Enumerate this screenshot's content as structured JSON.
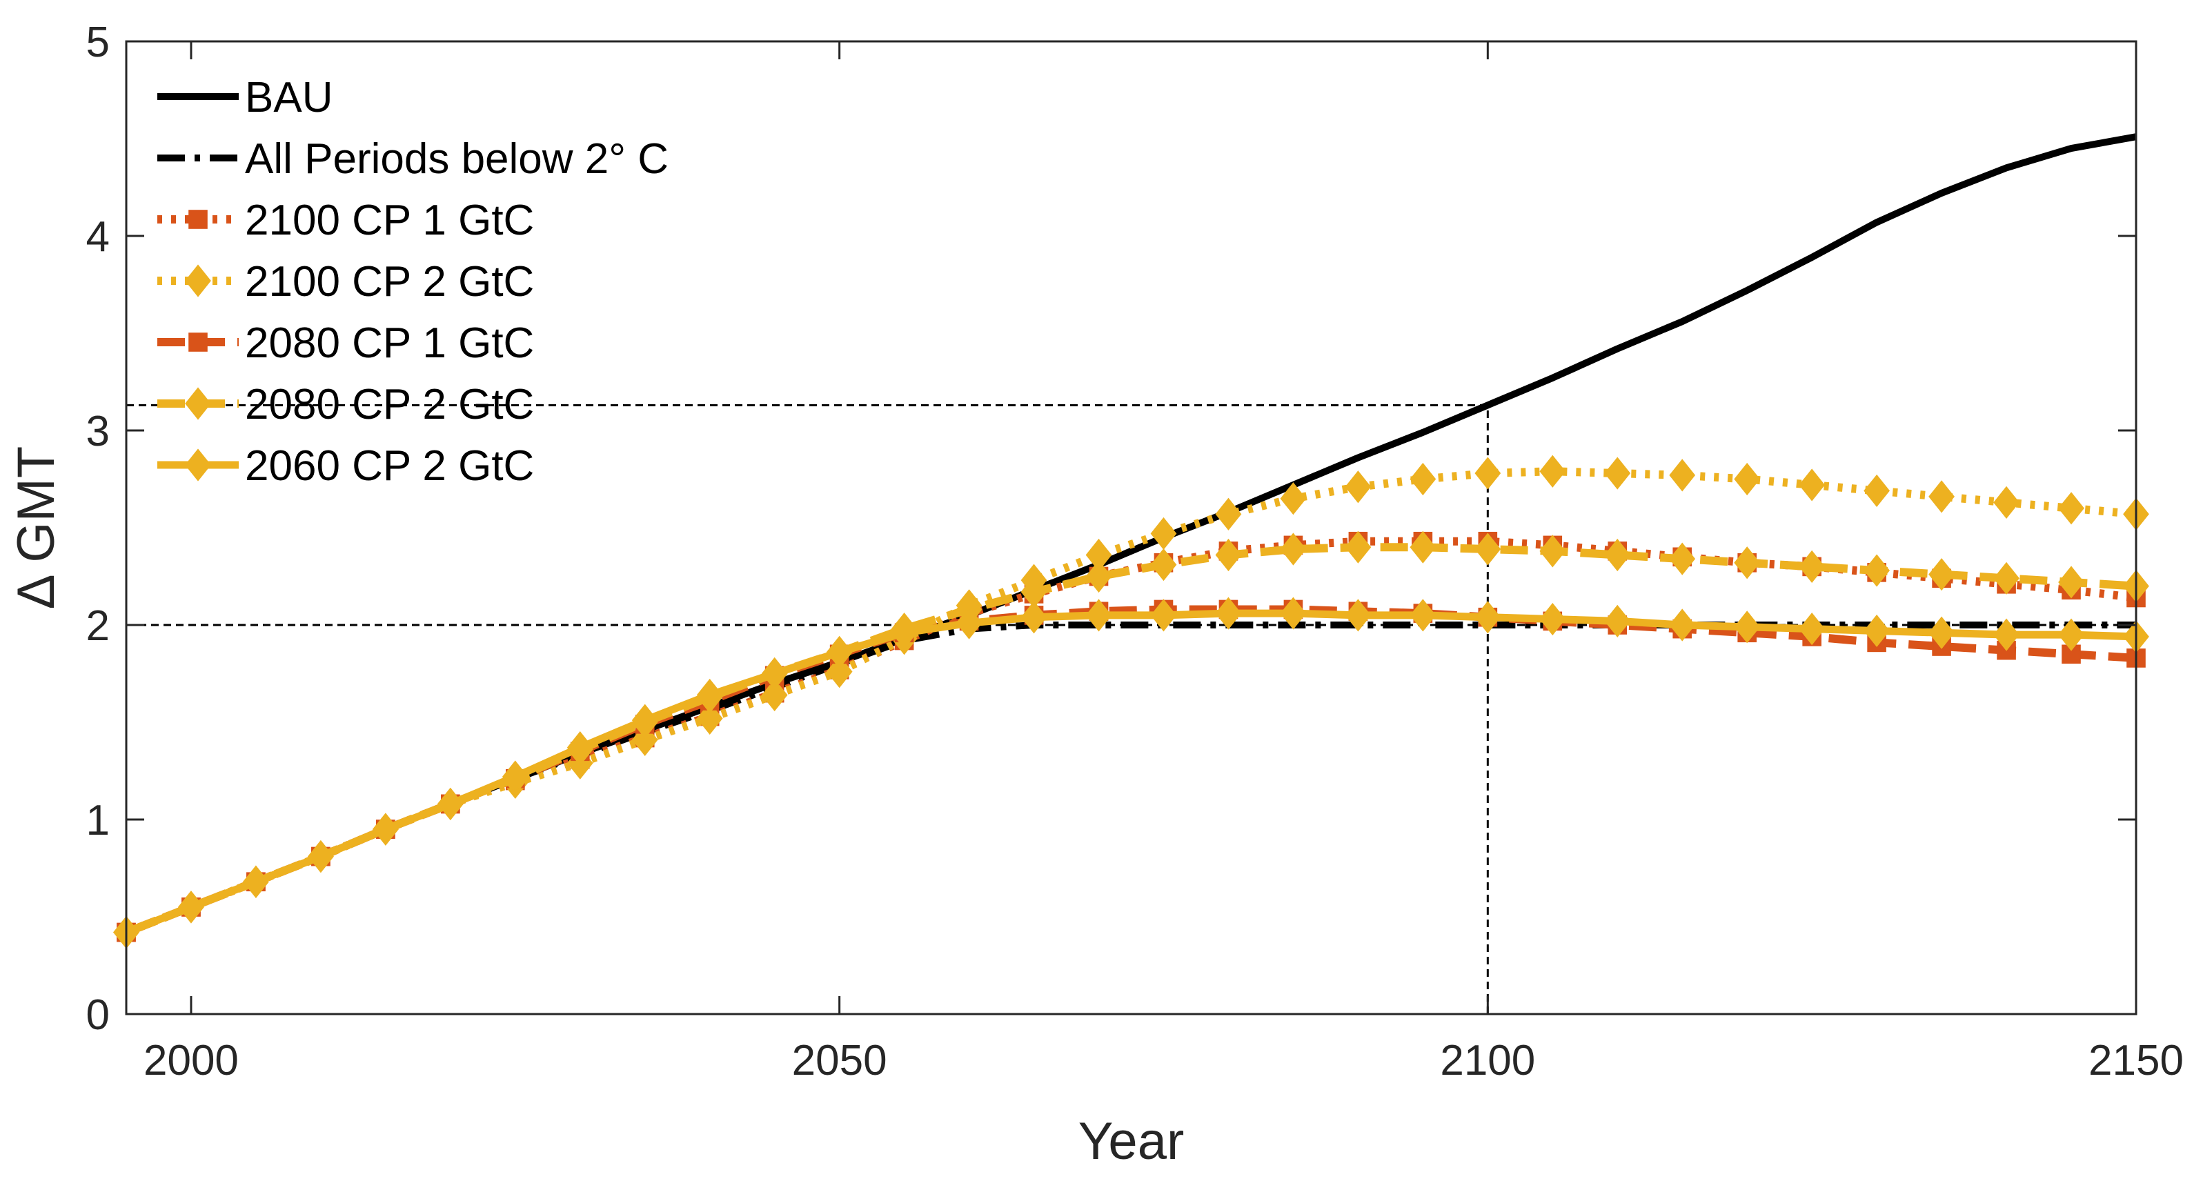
{
  "chart_data": {
    "type": "line",
    "title": "",
    "xlabel": "Year",
    "ylabel": "Δ GMT",
    "xlim": [
      1995,
      2150
    ],
    "ylim": [
      0,
      5
    ],
    "xticks": [
      2000,
      2050,
      2100,
      2150
    ],
    "yticks": [
      0,
      1,
      2,
      3,
      4,
      5
    ],
    "xtick_labels": [
      "2000",
      "2050",
      "2100",
      "2150"
    ],
    "ytick_labels": [
      "0",
      "1",
      "2",
      "3",
      "4",
      "5"
    ],
    "grid": false,
    "legend_position": "top-left",
    "reference_lines": [
      {
        "orientation": "horizontal",
        "y": 2.0,
        "x_range": [
          1995,
          2150
        ]
      },
      {
        "orientation": "horizontal",
        "y": 3.13,
        "x_range": [
          1995,
          2100
        ]
      },
      {
        "orientation": "vertical",
        "x": 2100,
        "y_range": [
          0,
          3.13
        ]
      }
    ],
    "x": [
      1995,
      2000,
      2005,
      2010,
      2015,
      2020,
      2025,
      2030,
      2035,
      2040,
      2045,
      2050,
      2055,
      2060,
      2065,
      2070,
      2075,
      2080,
      2085,
      2090,
      2095,
      2100,
      2105,
      2110,
      2115,
      2120,
      2125,
      2130,
      2135,
      2140,
      2145,
      2150
    ],
    "series": [
      {
        "name": "BAU",
        "color": "#000000",
        "line_style": "solid",
        "marker": "none",
        "values": [
          0.42,
          0.55,
          0.68,
          0.81,
          0.95,
          1.08,
          1.21,
          1.34,
          1.46,
          1.58,
          1.7,
          1.81,
          1.93,
          2.05,
          2.18,
          2.31,
          2.45,
          2.58,
          2.72,
          2.86,
          2.99,
          3.13,
          3.27,
          3.42,
          3.56,
          3.72,
          3.89,
          4.07,
          4.22,
          4.35,
          4.45,
          4.51
        ]
      },
      {
        "name": "All Periods below 2° C",
        "color": "#000000",
        "line_style": "dashdot",
        "marker": "none",
        "values": [
          0.42,
          0.55,
          0.68,
          0.81,
          0.95,
          1.08,
          1.21,
          1.33,
          1.45,
          1.56,
          1.68,
          1.8,
          1.92,
          1.98,
          2.0,
          2.0,
          2.0,
          2.0,
          2.0,
          2.0,
          2.0,
          2.0,
          2.0,
          2.0,
          2.0,
          2.0,
          2.0,
          2.0,
          2.0,
          2.0,
          2.0,
          2.0
        ]
      },
      {
        "name": "2100 CP 1 GtC",
        "color": "#D95319",
        "line_style": "dotted",
        "marker": "square",
        "values": [
          0.42,
          0.55,
          0.68,
          0.81,
          0.95,
          1.08,
          1.2,
          1.31,
          1.42,
          1.53,
          1.65,
          1.77,
          1.92,
          2.06,
          2.16,
          2.25,
          2.32,
          2.38,
          2.41,
          2.43,
          2.43,
          2.43,
          2.41,
          2.38,
          2.35,
          2.32,
          2.3,
          2.27,
          2.24,
          2.21,
          2.18,
          2.14
        ]
      },
      {
        "name": "2100 CP 2 GtC",
        "color": "#EDB120",
        "line_style": "dotted",
        "marker": "diamond",
        "values": [
          0.42,
          0.55,
          0.68,
          0.81,
          0.95,
          1.08,
          1.19,
          1.29,
          1.41,
          1.52,
          1.64,
          1.76,
          1.93,
          2.1,
          2.23,
          2.36,
          2.47,
          2.57,
          2.65,
          2.71,
          2.75,
          2.78,
          2.79,
          2.78,
          2.77,
          2.75,
          2.72,
          2.69,
          2.66,
          2.63,
          2.6,
          2.57
        ]
      },
      {
        "name": "2080 CP 1 GtC",
        "color": "#D95319",
        "line_style": "dashed",
        "marker": "square",
        "values": [
          0.42,
          0.55,
          0.68,
          0.81,
          0.95,
          1.08,
          1.21,
          1.35,
          1.49,
          1.61,
          1.74,
          1.85,
          1.96,
          2.02,
          2.05,
          2.07,
          2.08,
          2.08,
          2.08,
          2.07,
          2.06,
          2.04,
          2.02,
          2.0,
          1.98,
          1.96,
          1.94,
          1.91,
          1.89,
          1.87,
          1.85,
          1.83
        ]
      },
      {
        "name": "2080 CP 2 GtC",
        "color": "#EDB120",
        "line_style": "dashed",
        "marker": "diamond",
        "values": [
          0.42,
          0.55,
          0.68,
          0.81,
          0.95,
          1.08,
          1.21,
          1.36,
          1.5,
          1.63,
          1.75,
          1.86,
          1.98,
          2.08,
          2.17,
          2.25,
          2.31,
          2.36,
          2.39,
          2.4,
          2.4,
          2.39,
          2.38,
          2.36,
          2.34,
          2.32,
          2.3,
          2.28,
          2.26,
          2.24,
          2.22,
          2.2
        ]
      },
      {
        "name": "2060 CP 2 GtC",
        "color": "#EDB120",
        "line_style": "solid",
        "marker": "diamond",
        "values": [
          0.42,
          0.55,
          0.68,
          0.81,
          0.95,
          1.08,
          1.22,
          1.37,
          1.51,
          1.64,
          1.75,
          1.86,
          1.96,
          2.01,
          2.04,
          2.05,
          2.05,
          2.06,
          2.06,
          2.05,
          2.05,
          2.04,
          2.03,
          2.02,
          2.0,
          1.99,
          1.98,
          1.97,
          1.96,
          1.95,
          1.95,
          1.94
        ]
      }
    ]
  }
}
